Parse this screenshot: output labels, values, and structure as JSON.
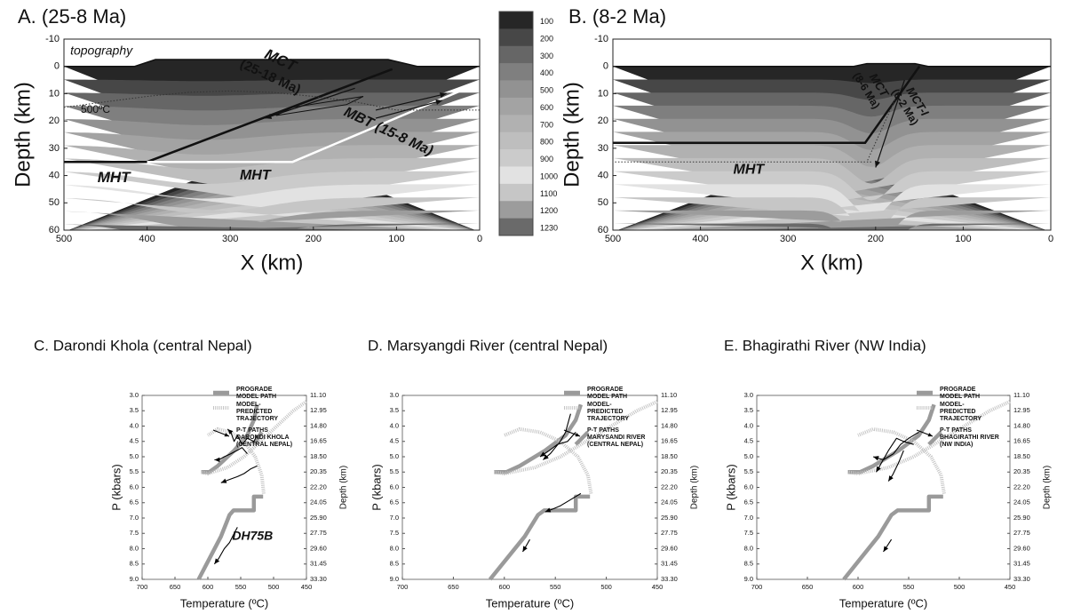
{
  "chart_data": [
    {
      "type": "section",
      "title": "A. (25-8 Ma)",
      "x_label": "X (km)",
      "y_label": "Depth (km)",
      "xlim": [
        0,
        500
      ],
      "xticks": [
        0,
        100,
        200,
        300,
        400,
        500
      ],
      "ylim": [
        -10,
        60
      ],
      "y_inverted": true,
      "yticks": [
        -10,
        0,
        10,
        20,
        30,
        40,
        50,
        60
      ],
      "colorbar": {
        "levels": [
          100,
          200,
          300,
          400,
          500,
          600,
          700,
          800,
          900,
          1000,
          1100,
          1200,
          1230
        ],
        "colors": [
          "#262626",
          "#474747",
          "#666666",
          "#7f7f7f",
          "#929292",
          "#a3a3a3",
          "#b1b1b1",
          "#bebebe",
          "#cbcbcb",
          "#e2e2e2",
          "#c6c6c6",
          "#9c9c9c",
          "#6a6a6a"
        ]
      },
      "surface": {
        "color": "#111111",
        "x": [
          0,
          75,
          110,
          390,
          415,
          500
        ],
        "values": [
          0,
          0,
          -2.5,
          -2.5,
          0,
          0
        ]
      },
      "series": [
        {
          "color": "#111111",
          "style": "solid",
          "x": [
            105,
            400,
            500
          ],
          "values": [
            1,
            35,
            35
          ]
        },
        {
          "color": "#ffffff",
          "style": "solid",
          "x": [
            0,
            225,
            400
          ],
          "values": [
            6,
            35,
            35
          ]
        },
        {
          "color": "#333333",
          "style": "dotted",
          "x": [
            0,
            100,
            150,
            200,
            250,
            300,
            350,
            400,
            450,
            500
          ],
          "values": [
            16,
            16,
            13,
            11,
            9.5,
            9,
            9.5,
            11,
            13,
            15
          ]
        },
        {
          "color": "#111111",
          "style": "arrow",
          "x": [
            125,
            40
          ],
          "values": [
            16,
            10
          ]
        },
        {
          "color": "#111111",
          "style": "arrow",
          "x": [
            125,
            45
          ],
          "values": [
            19,
            12.5
          ]
        },
        {
          "color": "#111111",
          "style": "arrow",
          "x": [
            150,
            258
          ],
          "values": [
            8,
            19
          ]
        },
        {
          "color": "#111111",
          "style": "thin",
          "x": [
            140,
            225,
            245,
            160,
            140
          ],
          "values": [
            11,
            15,
            18,
            14,
            11
          ]
        }
      ],
      "annotations": [
        "topography",
        "MCT",
        "(25-18 Ma)",
        "500ºC",
        "MBT (15-8 Ma)",
        "MHT",
        "MHT"
      ]
    },
    {
      "type": "section",
      "title": "B. (8-2 Ma)",
      "x_label": "X (km)",
      "y_label": "Depth (km)",
      "xlim": [
        0,
        500
      ],
      "xticks": [
        0,
        100,
        200,
        300,
        400,
        500
      ],
      "ylim": [
        -10,
        60
      ],
      "y_inverted": true,
      "yticks": [
        -10,
        0,
        10,
        20,
        30,
        40,
        50,
        60
      ],
      "surface": {
        "color": "#111111",
        "x": [
          0,
          140,
          155,
          210,
          225,
          500
        ],
        "values": [
          0,
          0,
          -1,
          -1,
          0,
          0
        ]
      },
      "series": [
        {
          "color": "#111111",
          "style": "solid",
          "x": [
            150,
            212,
            500
          ],
          "values": [
            0,
            28,
            28
          ]
        },
        {
          "color": "#333333",
          "style": "dotted",
          "x": [
            205,
            500
          ],
          "values": [
            35,
            35
          ]
        },
        {
          "color": "#333333",
          "style": "dotted",
          "x": [
            172,
            210
          ],
          "values": [
            8,
            35
          ]
        },
        {
          "color": "#111111",
          "style": "arrow",
          "x": [
            167,
            200
          ],
          "values": [
            5,
            37
          ]
        }
      ],
      "annotations": [
        "MCT",
        "(8-6 Ma)",
        "MCT-I",
        "(6-2 Ma)",
        "MHT"
      ]
    },
    {
      "type": "pt-path",
      "title": "C. Darondi Khola (central Nepal)",
      "x_label": "Temperature (ºC)",
      "y_label": "P (kbars)",
      "y2_label": "Depth (km)",
      "xlim": [
        450,
        700
      ],
      "xticks": [
        450,
        500,
        550,
        600,
        650,
        700
      ],
      "ylim": [
        3,
        9
      ],
      "y_inverted": true,
      "yticks": [
        {
          "value": 3,
          "label": "3.0"
        },
        3.5,
        {
          "value": 4,
          "label": "4.0"
        },
        4.5,
        {
          "value": 5,
          "label": "5.0"
        },
        5.5,
        {
          "value": 6,
          "label": "6.0"
        },
        6.5,
        {
          "value": 7,
          "label": "7.0"
        },
        7.5,
        {
          "value": 8,
          "label": "8.0"
        },
        8.5,
        {
          "value": 9,
          "label": "9.0"
        }
      ],
      "y2lim": [
        11.1,
        33.3
      ],
      "y2_inverted": true,
      "y2ticks": [
        {
          "value": 11.1,
          "label": "11.10"
        },
        12.95,
        {
          "value": 14.8,
          "label": "14.80"
        },
        16.65,
        {
          "value": 18.5,
          "label": "18.50"
        },
        20.35,
        {
          "value": 22.2,
          "label": "22.20"
        },
        24.05,
        {
          "value": 25.9,
          "label": "25.90"
        },
        27.75,
        {
          "value": 29.6,
          "label": "29.60"
        },
        31.45,
        {
          "value": 33.3,
          "label": "33.30"
        }
      ],
      "series": [
        {
          "name": "PROGRADE\nMODEL PATH",
          "color": "#9a9a9a",
          "style": "thick",
          "x": [
            525,
            530,
            540,
            560,
            585,
            598,
            610,
            null,
            518,
            530,
            null,
            516,
            530,
            530,
            561,
            567,
            580,
            614
          ],
          "values": [
            3.3,
            3.8,
            4.3,
            4.8,
            5.3,
            5.5,
            5.5,
            null,
            4.2,
            4.6,
            null,
            6.3,
            6.3,
            6.75,
            6.75,
            6.9,
            7.6,
            9.0
          ]
        },
        {
          "name": "MODEL-\nPREDICTED\nTRAJECTORY",
          "color": "#c4c4c4",
          "style": "dotted",
          "x": [
            450,
            470,
            495,
            520,
            545,
            570,
            600,
            610,
            null,
            515,
            518,
            528,
            545,
            565,
            585,
            600
          ],
          "values": [
            3.2,
            3.5,
            4.0,
            4.5,
            5.0,
            5.35,
            5.55,
            5.5,
            null,
            6.2,
            5.6,
            5.0,
            4.5,
            4.2,
            4.1,
            4.3
          ]
        },
        {
          "name": "P-T PATHS\nDARONDI KHOLA\n(CENTRAL NEPAL)",
          "color": "#000000",
          "style": "arrows",
          "x": [
            525,
            530,
            540,
            548,
            555,
            560,
            565,
            570,
            null,
            540,
            548,
            556,
            565,
            575,
            583,
            590,
            null,
            525,
            535,
            545,
            555,
            568,
            580,
            null,
            555,
            560,
            567,
            575,
            583,
            590
          ],
          "values": [
            4.3,
            4.5,
            4.4,
            4.6,
            4.3,
            4.5,
            4.2,
            4.1,
            null,
            4.9,
            4.7,
            4.8,
            4.9,
            5.0,
            5.1,
            5.1,
            null,
            5.3,
            5.4,
            5.55,
            5.65,
            5.75,
            5.85,
            null,
            7.3,
            7.5,
            7.8,
            8.0,
            8.3,
            8.5
          ]
        }
      ],
      "annotations": [
        "DH75B"
      ]
    },
    {
      "type": "pt-path",
      "title": "D. Marsyangdi River (central Nepal)",
      "x_label": "Temperature (ºC)",
      "y_label": "P (kbars)",
      "y2_label": "Depth (km)",
      "xlim": [
        450,
        700
      ],
      "xticks": [
        450,
        500,
        550,
        600,
        650,
        700
      ],
      "ylim": [
        3,
        9
      ],
      "y_inverted": true,
      "yticks": [
        {
          "value": 3,
          "label": "3.0"
        },
        3.5,
        {
          "value": 4,
          "label": "4.0"
        },
        4.5,
        {
          "value": 5,
          "label": "5.0"
        },
        5.5,
        {
          "value": 6,
          "label": "6.0"
        },
        6.5,
        {
          "value": 7,
          "label": "7.0"
        },
        7.5,
        {
          "value": 8,
          "label": "8.0"
        },
        8.5,
        {
          "value": 9,
          "label": "9.0"
        }
      ],
      "y2lim": [
        11.1,
        33.3
      ],
      "y2_inverted": true,
      "y2ticks": [
        {
          "value": 11.1,
          "label": "11.10"
        },
        12.95,
        {
          "value": 14.8,
          "label": "14.80"
        },
        16.65,
        {
          "value": 18.5,
          "label": "18.50"
        },
        20.35,
        {
          "value": 22.2,
          "label": "22.20"
        },
        24.05,
        {
          "value": 25.9,
          "label": "25.90"
        },
        27.75,
        {
          "value": 29.6,
          "label": "29.60"
        },
        31.45,
        {
          "value": 33.3,
          "label": "33.30"
        }
      ],
      "series": [
        {
          "name": "PROGRADE\nMODEL PATH",
          "color": "#9a9a9a",
          "style": "thick",
          "x": [
            525,
            530,
            540,
            560,
            585,
            598,
            610,
            null,
            518,
            530,
            null,
            516,
            530,
            530,
            561,
            567,
            580,
            614
          ],
          "values": [
            3.3,
            3.8,
            4.3,
            4.8,
            5.3,
            5.5,
            5.5,
            null,
            4.2,
            4.6,
            null,
            6.3,
            6.3,
            6.75,
            6.75,
            6.9,
            7.6,
            9.0
          ]
        },
        {
          "name": "MODEL-\nPREDICTED\nTRAJECTORY",
          "color": "#c4c4c4",
          "style": "dotted",
          "x": [
            450,
            470,
            495,
            520,
            545,
            570,
            600,
            610,
            null,
            515,
            518,
            528,
            545,
            565,
            585,
            600
          ],
          "values": [
            3.2,
            3.5,
            4.0,
            4.5,
            5.0,
            5.35,
            5.55,
            5.5,
            null,
            6.2,
            5.6,
            5.0,
            4.5,
            4.2,
            4.1,
            4.3
          ]
        },
        {
          "name": "P-T PATHS\nMARYSANDI RIVER\n(CENTRAL NEPAL)",
          "color": "#000000",
          "style": "arrows",
          "x": [
            535,
            540,
            545,
            550,
            555,
            562,
            null,
            530,
            538,
            548,
            556,
            565,
            null,
            525,
            535,
            545,
            552,
            560,
            null,
            575,
            582
          ],
          "values": [
            3.6,
            4.2,
            4.5,
            4.7,
            4.9,
            5.1,
            null,
            4.2,
            4.5,
            4.6,
            4.8,
            5.0,
            null,
            6.2,
            6.4,
            6.6,
            6.7,
            6.8,
            null,
            7.7,
            8.1
          ]
        }
      ]
    },
    {
      "type": "pt-path",
      "title": "E. Bhagirathi River (NW India)",
      "x_label": "Temperature (ºC)",
      "y_label": "P (kbars)",
      "y2_label": "Depth (km)",
      "xlim": [
        450,
        700
      ],
      "xticks": [
        450,
        500,
        550,
        600,
        650,
        700
      ],
      "ylim": [
        3,
        9
      ],
      "y_inverted": true,
      "yticks": [
        {
          "value": 3,
          "label": "3.0"
        },
        3.5,
        {
          "value": 4,
          "label": "4.0"
        },
        4.5,
        {
          "value": 5,
          "label": "5.0"
        },
        5.5,
        {
          "value": 6,
          "label": "6.0"
        },
        6.5,
        {
          "value": 7,
          "label": "7.0"
        },
        7.5,
        {
          "value": 8,
          "label": "8.0"
        },
        8.5,
        {
          "value": 9,
          "label": "9.0"
        }
      ],
      "y2lim": [
        11.1,
        33.3
      ],
      "y2_inverted": true,
      "y2ticks": [
        {
          "value": 11.1,
          "label": "11.10"
        },
        12.95,
        {
          "value": 14.8,
          "label": "14.80"
        },
        16.65,
        {
          "value": 18.5,
          "label": "18.50"
        },
        20.35,
        {
          "value": 22.2,
          "label": "22.20"
        },
        24.05,
        {
          "value": 25.9,
          "label": "25.90"
        },
        27.75,
        {
          "value": 29.6,
          "label": "29.60"
        },
        31.45,
        {
          "value": 33.3,
          "label": "33.30"
        }
      ],
      "series": [
        {
          "name": "PROGRADE\nMODEL PATH",
          "color": "#9a9a9a",
          "style": "thick",
          "x": [
            525,
            530,
            540,
            560,
            585,
            598,
            610,
            null,
            518,
            530,
            null,
            516,
            530,
            530,
            561,
            567,
            580,
            614
          ],
          "values": [
            3.3,
            3.8,
            4.3,
            4.8,
            5.3,
            5.5,
            5.5,
            null,
            4.2,
            4.6,
            null,
            6.3,
            6.3,
            6.75,
            6.75,
            6.9,
            7.6,
            9.0
          ]
        },
        {
          "name": "MODEL-\nPREDICTED\nTRAJECTORY",
          "color": "#c4c4c4",
          "style": "dotted",
          "x": [
            450,
            470,
            495,
            520,
            545,
            570,
            600,
            610,
            null,
            515,
            518,
            528,
            545,
            565,
            585,
            600
          ],
          "values": [
            3.2,
            3.5,
            4.0,
            4.5,
            5.0,
            5.35,
            5.55,
            5.5,
            null,
            6.2,
            5.6,
            5.0,
            4.5,
            4.2,
            4.1,
            4.3
          ]
        },
        {
          "name": "P-T PATHS\nBHAGIRATHI RIVER\n(NW INDIA)",
          "color": "#000000",
          "style": "arrows",
          "x": [
            540,
            550,
            558,
            565,
            575,
            585,
            null,
            545,
            555,
            562,
            570,
            582,
            null,
            555,
            560,
            566,
            570,
            null,
            567,
            575
          ],
          "values": [
            4.2,
            4.4,
            4.6,
            4.9,
            5.1,
            5.0,
            null,
            4.6,
            4.5,
            4.4,
            4.8,
            5.5,
            null,
            4.8,
            5.2,
            5.6,
            5.8,
            null,
            7.7,
            8.1
          ]
        }
      ]
    }
  ]
}
